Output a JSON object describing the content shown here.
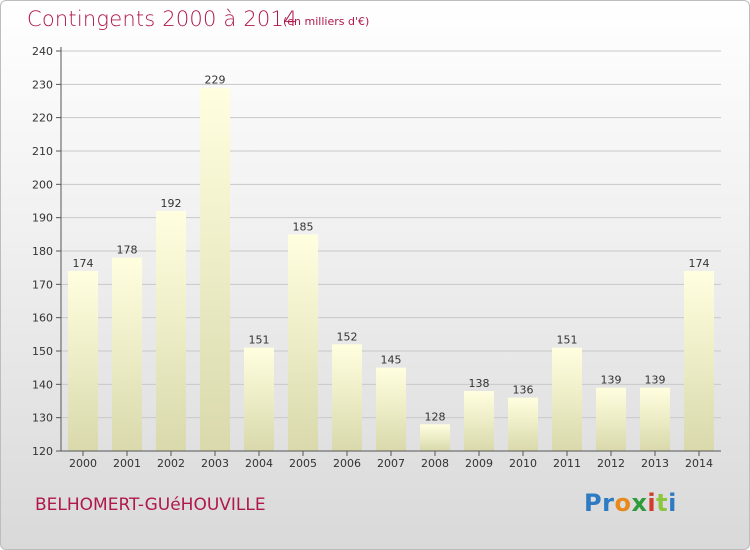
{
  "title": "Contingents 2000 à 2014",
  "subtitle": "(en milliers d'€)",
  "commune": "BELHOMERT-GUéHOUVILLE",
  "logo": {
    "text": "Proxiti",
    "colors": [
      "#2e7bc4",
      "#2e7bc4",
      "#e8891c",
      "#2e9c3a",
      "#d23c2b",
      "#8cc63f",
      "#2e7bc4"
    ]
  },
  "colors": {
    "title": "#b0184b",
    "bar_top": "#ffffe0",
    "bar_bottom": "#dcdcb0",
    "axis": "#555555",
    "grid": "#cccccc"
  },
  "chart_data": {
    "type": "bar",
    "categories": [
      "2000",
      "2001",
      "2002",
      "2003",
      "2004",
      "2005",
      "2006",
      "2007",
      "2008",
      "2009",
      "2010",
      "2011",
      "2012",
      "2013",
      "2014"
    ],
    "values": [
      174,
      178,
      192,
      229,
      151,
      185,
      152,
      145,
      128,
      138,
      136,
      151,
      139,
      139,
      174
    ],
    "yticks": [
      120,
      130,
      140,
      150,
      160,
      170,
      180,
      190,
      200,
      210,
      220,
      230,
      240
    ],
    "ylim": [
      120,
      240
    ],
    "grid": true,
    "data_labels": true
  }
}
